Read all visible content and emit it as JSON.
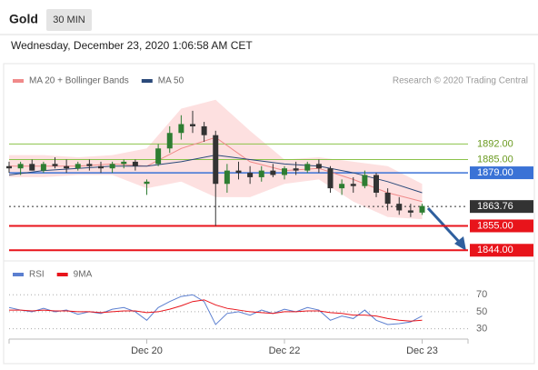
{
  "header": {
    "title": "Gold",
    "interval": "30 MIN",
    "date": "Wednesday, December 23, 2020 1:06:58 AM CET"
  },
  "chart_data": [
    {
      "type": "candlestick",
      "source": "Research © 2020 Trading Central",
      "xlim": [
        0,
        80
      ],
      "ylim": [
        1840,
        1916
      ],
      "x": [
        0,
        2,
        4,
        6,
        8,
        10,
        12,
        14,
        16,
        18,
        20,
        22,
        24,
        26,
        28,
        30,
        32,
        34,
        36,
        38,
        40,
        42,
        44,
        46,
        48,
        50,
        52,
        54,
        56,
        58,
        60,
        62,
        64,
        66,
        68,
        70,
        72
      ],
      "open": [
        1882,
        1881,
        1883,
        1880,
        1883,
        1882,
        1881,
        1883,
        1882,
        1881,
        1883,
        1884,
        1874,
        1883,
        1890,
        1897,
        1901,
        1900,
        1896,
        1874,
        1880,
        1879,
        1877,
        1880,
        1878,
        1881,
        1880,
        1883,
        1881,
        1872,
        1874,
        1873,
        1878,
        1870,
        1865,
        1862,
        1861
      ],
      "high": [
        1884,
        1884,
        1885,
        1884,
        1886,
        1885,
        1884,
        1885,
        1884,
        1884,
        1885,
        1885,
        1876,
        1892,
        1900,
        1905,
        1907,
        1902,
        1898,
        1883,
        1884,
        1882,
        1882,
        1883,
        1882,
        1884,
        1884,
        1885,
        1882,
        1876,
        1877,
        1880,
        1879,
        1872,
        1868,
        1865,
        1865
      ],
      "low": [
        1879,
        1878,
        1880,
        1879,
        1881,
        1879,
        1880,
        1880,
        1879,
        1879,
        1881,
        1880,
        1869,
        1882,
        1888,
        1894,
        1897,
        1893,
        1855,
        1870,
        1876,
        1874,
        1875,
        1877,
        1876,
        1878,
        1879,
        1879,
        1870,
        1869,
        1870,
        1872,
        1868,
        1862,
        1860,
        1859,
        1860
      ],
      "close": [
        1881,
        1883,
        1880,
        1883,
        1882,
        1881,
        1883,
        1882,
        1881,
        1883,
        1884,
        1882,
        1875,
        1890,
        1897,
        1901,
        1900,
        1896,
        1874,
        1880,
        1879,
        1877,
        1880,
        1878,
        1881,
        1880,
        1883,
        1881,
        1872,
        1874,
        1873,
        1878,
        1870,
        1865,
        1862,
        1861,
        1864
      ],
      "up_color": "#2e7d32",
      "down_color": "#333333",
      "series": [
        {
          "name": "MA 20 + Bollinger Bands",
          "color": "#f08a8a",
          "band_color": "#fde0e0",
          "x": [
            0,
            6,
            12,
            18,
            24,
            30,
            36,
            42,
            48,
            54,
            60,
            66,
            72
          ],
          "values": [
            1882,
            1882,
            1882,
            1883,
            1882,
            1890,
            1895,
            1884,
            1880,
            1881,
            1876,
            1870,
            1866
          ],
          "upper": [
            1887,
            1887,
            1886,
            1887,
            1890,
            1908,
            1912,
            1898,
            1885,
            1886,
            1884,
            1882,
            1874
          ],
          "lower": [
            1877,
            1877,
            1878,
            1878,
            1872,
            1875,
            1868,
            1868,
            1874,
            1876,
            1866,
            1859,
            1858
          ]
        },
        {
          "name": "MA 50",
          "color": "#2b4a7a",
          "x": [
            0,
            6,
            12,
            18,
            24,
            30,
            36,
            42,
            48,
            54,
            60,
            66,
            72
          ],
          "values": [
            1878,
            1880,
            1881,
            1882,
            1882,
            1884,
            1887,
            1885,
            1883,
            1882,
            1879,
            1875,
            1870
          ]
        }
      ],
      "levels": [
        {
          "value": 1892,
          "label": "1892.00",
          "color": "#8bc34a",
          "text_color": "#6a9a1f",
          "boxed": false,
          "dotted": false,
          "width": 1
        },
        {
          "value": 1885,
          "label": "1885.00",
          "color": "#8bc34a",
          "text_color": "#6a9a1f",
          "boxed": false,
          "dotted": false,
          "width": 1
        },
        {
          "value": 1879,
          "label": "1879.00",
          "color": "#3a72d6",
          "text_color": "#ffffff",
          "boxed": true,
          "dotted": false,
          "width": 1.5
        },
        {
          "value": 1863.76,
          "label": "1863.76",
          "color": "#333333",
          "text_color": "#ffffff",
          "boxed": true,
          "dotted": true,
          "width": 1
        },
        {
          "value": 1855,
          "label": "1855.00",
          "color": "#e8141b",
          "text_color": "#ffffff",
          "boxed": true,
          "dotted": false,
          "width": 2
        },
        {
          "value": 1844,
          "label": "1844.00",
          "color": "#e8141b",
          "text_color": "#ffffff",
          "boxed": true,
          "dotted": false,
          "width": 2
        }
      ]
    },
    {
      "type": "line",
      "xlim": [
        0,
        80
      ],
      "ylim": [
        20,
        82
      ],
      "yticks": [
        70,
        50,
        30
      ],
      "xticks": [
        {
          "value": 24,
          "label": "Dec 20"
        },
        {
          "value": 48,
          "label": "Dec 22"
        },
        {
          "value": 72,
          "label": "Dec 23"
        }
      ],
      "x": [
        0,
        2,
        4,
        6,
        8,
        10,
        12,
        14,
        16,
        18,
        20,
        22,
        24,
        26,
        28,
        30,
        32,
        34,
        36,
        38,
        40,
        42,
        44,
        46,
        48,
        50,
        52,
        54,
        56,
        58,
        60,
        62,
        64,
        66,
        68,
        70,
        72
      ],
      "series": [
        {
          "name": "RSI",
          "color": "#5b7fd0",
          "values": [
            55,
            52,
            50,
            54,
            50,
            52,
            47,
            50,
            48,
            53,
            55,
            50,
            40,
            55,
            62,
            68,
            70,
            62,
            35,
            48,
            50,
            46,
            52,
            48,
            53,
            50,
            55,
            52,
            40,
            45,
            42,
            52,
            40,
            35,
            36,
            38,
            45
          ]
        },
        {
          "name": "9MA",
          "color": "#e8141b",
          "values": [
            52,
            52,
            51,
            52,
            51,
            51,
            50,
            50,
            49,
            50,
            51,
            51,
            49,
            50,
            53,
            57,
            62,
            64,
            58,
            54,
            52,
            50,
            49,
            48,
            50,
            50,
            51,
            51,
            49,
            48,
            46,
            46,
            45,
            42,
            40,
            39,
            40
          ]
        }
      ]
    }
  ]
}
